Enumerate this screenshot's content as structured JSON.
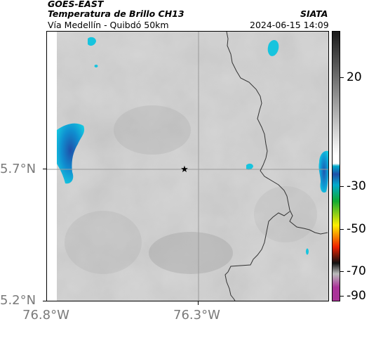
{
  "header": {
    "satellite": "GOES-EAST",
    "product": "Temperatura de Brillo CH13",
    "location": "Vía Medellín - Quibdó 50km",
    "source": "SIATA",
    "timestamp": "2024-06-15 14:09"
  },
  "map": {
    "lon_ticks": [
      "76.8°W",
      "76.3°W"
    ],
    "lat_ticks": [
      "5.7°N",
      "5.2°N"
    ],
    "marker_icon": "star-icon",
    "gridline_color": "#9a9a9a",
    "coast_color": "#333333"
  },
  "colorbar": {
    "labels": [
      "20",
      "-30",
      "-50",
      "-70",
      "-90"
    ],
    "colors": [
      "#1a1a1a",
      "#ffffff",
      "#00aacc",
      "#1f4fa8",
      "#11aa33",
      "#ffee00",
      "#ee2200",
      "#111111",
      "#bbbbbb",
      "#aa3399"
    ]
  }
}
